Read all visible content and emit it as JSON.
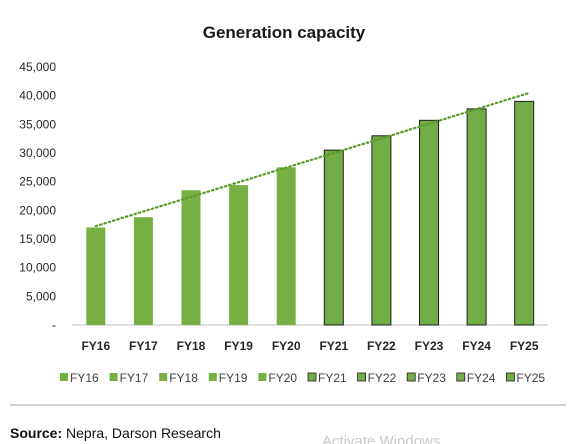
{
  "chart_data": {
    "type": "bar",
    "title": "Generation capacity",
    "xlabel": "",
    "ylabel": "",
    "categories": [
      "FY16",
      "FY17",
      "FY18",
      "FY19",
      "FY20",
      "FY21",
      "FY22",
      "FY23",
      "FY24",
      "FY25"
    ],
    "series": [
      {
        "values": [
          17000,
          18800,
          23500,
          24400,
          27500,
          30500,
          33000,
          35700,
          37700,
          39000
        ],
        "colors": [
          "#76b043",
          "#76b043",
          "#76b043",
          "#76b043",
          "#76b043",
          "#70ad47",
          "#70ad47",
          "#70ad47",
          "#70ad47",
          "#70ad47"
        ],
        "outlined": [
          false,
          false,
          false,
          false,
          false,
          true,
          true,
          true,
          true,
          true
        ]
      }
    ],
    "trendline": {
      "type": "linear",
      "style": "dotted",
      "color": "#5a9a2a"
    },
    "ylim": [
      0,
      45000
    ],
    "yticks": [
      0,
      5000,
      10000,
      15000,
      20000,
      25000,
      30000,
      35000,
      40000,
      45000
    ],
    "ytick_labels": [
      "-",
      "5,000",
      "10,000",
      "15,000",
      "20,000",
      "25,000",
      "30,000",
      "35,000",
      "40,000",
      "45,000"
    ],
    "grid": false,
    "legend": {
      "position": "bottom",
      "entries": [
        "FY16",
        "FY17",
        "FY18",
        "FY19",
        "FY20",
        "FY21",
        "FY22",
        "FY23",
        "FY24",
        "FY25"
      ]
    }
  },
  "source": {
    "label": "Source:",
    "text": " Nepra, Darson Research"
  },
  "watermark": "Activate Windows"
}
